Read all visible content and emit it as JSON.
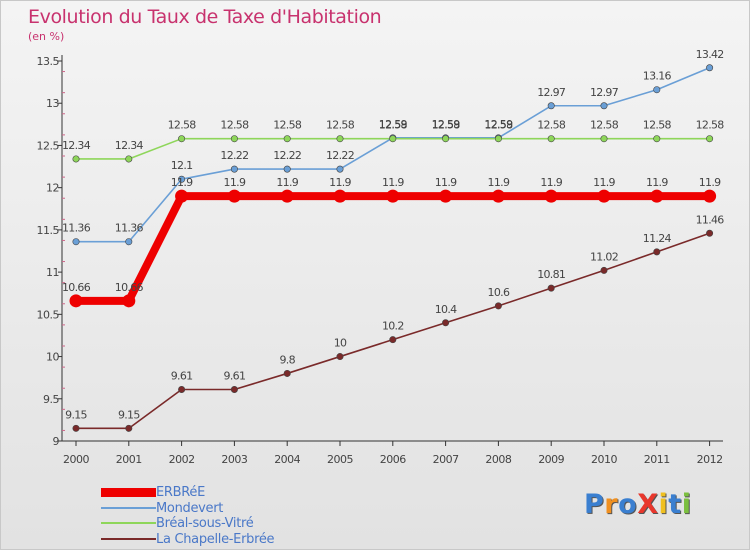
{
  "header": {
    "title": "Evolution du Taux de Taxe d'Habitation",
    "subtitle": "(en %)"
  },
  "colors": {
    "title": "#c8326e",
    "axis_text": "#444444",
    "legend_text": "#4a78c8",
    "grid_tick": "#cc6688"
  },
  "chart_data": {
    "type": "line",
    "title": "Evolution du Taux de Taxe d'Habitation",
    "ylabel": "(en %)",
    "xlabel": "",
    "x": [
      "2000",
      "2001",
      "2002",
      "2003",
      "2004",
      "2005",
      "2006",
      "2007",
      "2008",
      "2009",
      "2010",
      "2011",
      "2012"
    ],
    "ylim": [
      9,
      13.5
    ],
    "yticks": [
      "9",
      "9.5",
      "10",
      "10.5",
      "11",
      "11.5",
      "12",
      "12.5",
      "13",
      "13.5"
    ],
    "grid": false,
    "legend_position": "bottom-left",
    "series": [
      {
        "name": "ERBRéE",
        "color": "#ee0000",
        "emphasis": true,
        "values": [
          10.66,
          10.66,
          11.9,
          11.9,
          11.9,
          11.9,
          11.9,
          11.9,
          11.9,
          11.9,
          11.9,
          11.9,
          11.9
        ],
        "labels": [
          "10.66",
          "10.66",
          "11.9",
          "11.9",
          "11.9",
          "11.9",
          "11.9",
          "11.9",
          "11.9",
          "11.9",
          "11.9",
          "11.9",
          "11.9"
        ]
      },
      {
        "name": "Mondevert",
        "color": "#6a9fd6",
        "emphasis": false,
        "values": [
          11.36,
          11.36,
          12.1,
          12.22,
          12.22,
          12.22,
          12.59,
          12.59,
          12.59,
          12.97,
          12.97,
          13.16,
          13.42
        ],
        "labels": [
          "11.36",
          "11.36",
          "12.1",
          "12.22",
          "12.22",
          "12.22",
          "12.59",
          "12.59",
          "12.59",
          "12.97",
          "12.97",
          "13.16",
          "13.42"
        ]
      },
      {
        "name": "Bréal-sous-Vitré",
        "color": "#8ed65a",
        "emphasis": false,
        "values": [
          12.34,
          12.34,
          12.58,
          12.58,
          12.58,
          12.58,
          12.58,
          12.58,
          12.58,
          12.58,
          12.58,
          12.58,
          12.58
        ],
        "labels": [
          "12.34",
          "12.34",
          "12.58",
          "12.58",
          "12.58",
          "12.58",
          "12.58",
          "12.58",
          "12.58",
          "12.58",
          "12.58",
          "12.58",
          "12.58"
        ]
      },
      {
        "name": "La Chapelle-Erbrée",
        "color": "#7a2a2a",
        "emphasis": false,
        "values": [
          9.15,
          9.15,
          9.61,
          9.61,
          9.8,
          10,
          10.2,
          10.4,
          10.6,
          10.81,
          11.02,
          11.24,
          11.46
        ],
        "labels": [
          "9.15",
          "9.15",
          "9.61",
          "9.61",
          "9.8",
          "10",
          "10.2",
          "10.4",
          "10.6",
          "10.81",
          "11.02",
          "11.24",
          "11.46"
        ]
      }
    ]
  },
  "logo": {
    "text": "ProXiti",
    "letter_colors": [
      "#3a7fd0",
      "#f09020",
      "#3a7fd0",
      "#e8372c",
      "#f0c020",
      "#3a7fd0",
      "#7cc040"
    ]
  }
}
